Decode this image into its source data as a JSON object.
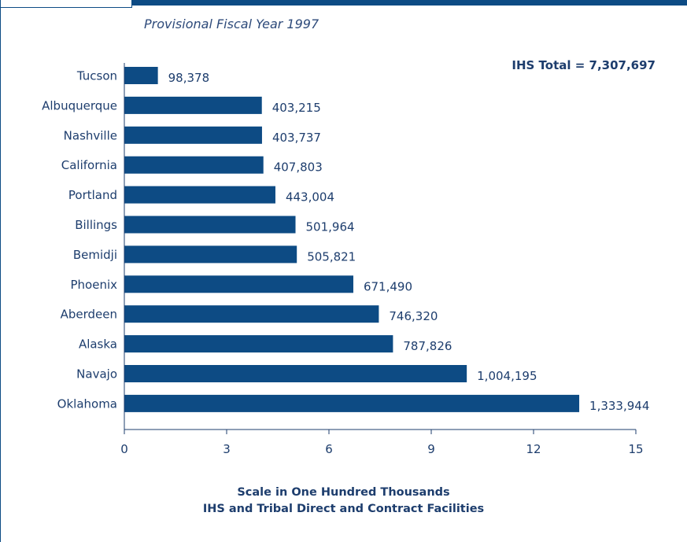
{
  "header": {
    "subtitle": "Provisional Fiscal Year 1997",
    "total": "IHS Total = 7,307,697"
  },
  "colors": {
    "bar": "#0d4b84",
    "text": "#1d3d6d",
    "axis": "#1d3d6d"
  },
  "chart_data": {
    "type": "bar",
    "orientation": "horizontal",
    "categories": [
      "Tucson",
      "Albuquerque",
      "Nashville",
      "California",
      "Portland",
      "Billings",
      "Bemidji",
      "Phoenix",
      "Aberdeen",
      "Alaska",
      "Navajo",
      "Oklahoma"
    ],
    "values": [
      98378,
      403215,
      403737,
      407803,
      443004,
      501964,
      505821,
      671490,
      746320,
      787826,
      1004195,
      1333944
    ],
    "value_labels": [
      "98,378",
      "403,215",
      "403,737",
      "407,803",
      "443,004",
      "501,964",
      "505,821",
      "671,490",
      "746,320",
      "787,826",
      "1,004,195",
      "1,333,944"
    ],
    "xticks": [
      0,
      3,
      6,
      9,
      12,
      15
    ],
    "xtick_labels": [
      "0",
      "3",
      "6",
      "9",
      "12",
      "15"
    ],
    "xlim": [
      0,
      15
    ],
    "x_unit_scale": 100000,
    "xlabel_lines": [
      "Scale in One Hundred Thousands",
      "IHS and Tribal Direct and Contract Facilities"
    ],
    "grid": false,
    "legend": "none"
  }
}
